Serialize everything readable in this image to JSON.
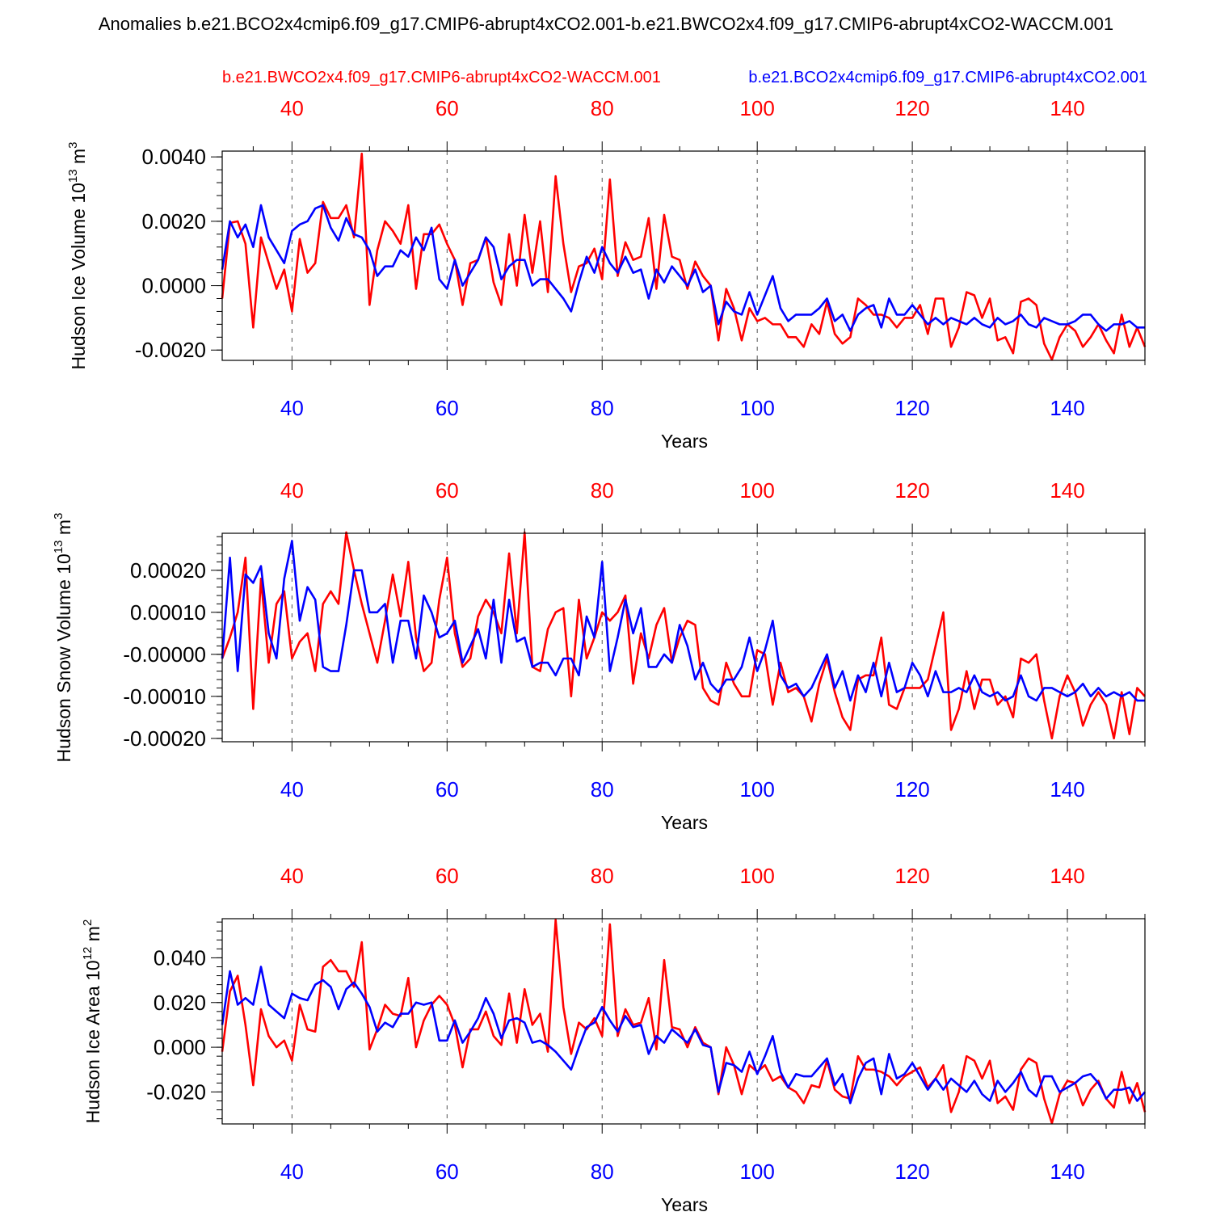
{
  "title": "Anomalies b.e21.BCO2x4cmip6.f09_g17.CMIP6-abrupt4xCO2.001-b.e21.BWCO2x4.f09_g17.CMIP6-abrupt4xCO2-WACCM.001",
  "colors": {
    "red": "#ff0000",
    "blue": "#0000ff",
    "grid": "#555555"
  },
  "legend": {
    "red_label": "b.e21.BWCO2x4.f09_g17.CMIP6-abrupt4xCO2-WACCM.001",
    "blue_label": "b.e21.BCO2x4cmip6.f09_g17.CMIP6-abrupt4xCO2.001"
  },
  "chart_data": [
    {
      "type": "line",
      "ylabel": "Hudson Ice Volume 10^13 m^3",
      "ylabel_main": "Hudson Ice Volume 10",
      "ylabel_exp": "13",
      "ylabel_unit": "m",
      "ylabel_unit_exp": "3",
      "xlabel": "Years",
      "xlim": [
        31,
        150
      ],
      "ylim": [
        -0.00232,
        0.00418
      ],
      "x_ticks": [
        "40",
        "60",
        "80",
        "100",
        "120",
        "140"
      ],
      "y_ticks": [
        "0.0040",
        "0.0020",
        "0.0000",
        "-0.0020"
      ],
      "y_tick_values": [
        0.004,
        0.002,
        0.0,
        -0.002
      ],
      "y_minor_step": 0.0004,
      "series": [
        {
          "name": "b.e21.BWCO2x4.f09_g17.CMIP6-abrupt4xCO2-WACCM.001",
          "color": "red",
          "values": [
            -0.0004,
            0.00195,
            0.002,
            0.0013,
            -0.0013,
            0.0015,
            0.0007,
            -0.0001,
            0.0005,
            -0.0008,
            0.00145,
            0.0004,
            0.0007,
            0.0026,
            0.0021,
            0.0021,
            0.0025,
            0.0015,
            0.0041,
            -0.0006,
            0.0011,
            0.002,
            0.0017,
            0.0013,
            0.0025,
            -0.0001,
            0.0016,
            0.0016,
            0.0019,
            0.0013,
            0.0008,
            -0.0006,
            0.0007,
            0.0008,
            0.0015,
            0.0001,
            -0.0006,
            0.0016,
            0.0,
            0.0022,
            0.0004,
            0.002,
            -0.0002,
            0.0034,
            0.0013,
            -0.0002,
            0.0006,
            0.0007,
            0.00115,
            0.0002,
            0.0033,
            0.0003,
            0.00135,
            0.0008,
            0.0009,
            0.0021,
            -0.0001,
            0.0022,
            0.0009,
            0.0008,
            -0.0001,
            0.00075,
            0.0003,
            0.0,
            -0.0017,
            -0.0001,
            -0.0007,
            -0.0017,
            -0.0007,
            -0.0011,
            -0.001,
            -0.0012,
            -0.0012,
            -0.0016,
            -0.0016,
            -0.0019,
            -0.0012,
            -0.0015,
            -0.0005,
            -0.0015,
            -0.0018,
            -0.0016,
            -0.0004,
            -0.0006,
            -0.0009,
            -0.0009,
            -0.001,
            -0.0013,
            -0.001,
            -0.001,
            -0.0006,
            -0.0015,
            -0.0004,
            -0.0004,
            -0.0019,
            -0.0013,
            -0.0002,
            -0.0003,
            -0.001,
            -0.0004,
            -0.0017,
            -0.0016,
            -0.0021,
            -0.0005,
            -0.0004,
            -0.0006,
            -0.0018,
            -0.0023,
            -0.0016,
            -0.0012,
            -0.0014,
            -0.0019,
            -0.0016,
            -0.0012,
            -0.0017,
            -0.0021,
            -0.0009,
            -0.0019,
            -0.0013,
            -0.0019
          ]
        },
        {
          "name": "b.e21.BCO2x4cmip6.f09_g17.CMIP6-abrupt4xCO2.001",
          "color": "blue",
          "values": [
            0.0005,
            0.002,
            0.0015,
            0.0019,
            0.0012,
            0.0025,
            0.0015,
            0.0011,
            0.0007,
            0.0017,
            0.0019,
            0.002,
            0.0024,
            0.0025,
            0.0018,
            0.0014,
            0.0021,
            0.0016,
            0.0015,
            0.0011,
            0.0003,
            0.0006,
            0.0006,
            0.0011,
            0.0009,
            0.0015,
            0.0011,
            0.0018,
            0.0002,
            -0.0001,
            0.0008,
            0.0,
            0.0004,
            0.0008,
            0.0015,
            0.0012,
            0.0002,
            0.0006,
            0.0008,
            0.0008,
            0.0,
            0.0002,
            0.0002,
            -0.0001,
            -0.0004,
            -0.0008,
            0.0001,
            0.0009,
            0.0004,
            0.0012,
            0.0007,
            0.0004,
            0.0009,
            0.0004,
            0.0005,
            -0.0004,
            0.0005,
            0.0001,
            0.0006,
            0.0003,
            0.0,
            0.0005,
            -0.0002,
            0.0,
            -0.0012,
            -0.0005,
            -0.0008,
            -0.0009,
            -0.0002,
            -0.0009,
            -0.0003,
            0.0003,
            -0.0007,
            -0.0011,
            -0.0009,
            -0.0009,
            -0.0009,
            -0.0007,
            -0.0004,
            -0.0011,
            -0.0009,
            -0.0014,
            -0.0009,
            -0.0007,
            -0.0006,
            -0.0013,
            -0.0004,
            -0.0009,
            -0.0009,
            -0.0006,
            -0.0009,
            -0.0012,
            -0.001,
            -0.0012,
            -0.001,
            -0.0011,
            -0.0012,
            -0.001,
            -0.0012,
            -0.0013,
            -0.001,
            -0.0012,
            -0.0011,
            -0.0009,
            -0.0012,
            -0.0013,
            -0.001,
            -0.0011,
            -0.0012,
            -0.0012,
            -0.0011,
            -0.0009,
            -0.0009,
            -0.0012,
            -0.0014,
            -0.0012,
            -0.0012,
            -0.0011,
            -0.0013,
            -0.0013
          ]
        }
      ]
    },
    {
      "type": "line",
      "ylabel": "Hudson Snow Volume 10^13 m^3",
      "ylabel_main": "Hudson Snow Volume 10",
      "ylabel_exp": "13",
      "ylabel_unit": "m",
      "ylabel_unit_exp": "3",
      "xlabel": "Years",
      "xlim": [
        31,
        150
      ],
      "ylim": [
        -0.000208,
        0.000288
      ],
      "x_ticks": [
        "40",
        "60",
        "80",
        "100",
        "120",
        "140"
      ],
      "y_ticks": [
        "0.00020",
        "0.00010",
        "-0.00000",
        "-0.00010",
        "-0.00020"
      ],
      "y_tick_values": [
        0.0002,
        0.0001,
        0.0,
        -0.0001,
        -0.0002
      ],
      "y_minor_step": 2e-05,
      "series": [
        {
          "name": "b.e21.BWCO2x4.f09_g17.CMIP6-abrupt4xCO2-WACCM.001",
          "color": "red",
          "values": [
            -1e-05,
            4e-05,
            0.0001,
            0.00023,
            -0.00013,
            0.00018,
            -2e-05,
            0.00012,
            0.00015,
            -1e-05,
            3e-05,
            5e-05,
            -4e-05,
            0.00012,
            0.00015,
            0.00012,
            0.00029,
            0.0002,
            0.00012,
            5e-05,
            -2e-05,
            8e-05,
            0.00019,
            9e-05,
            0.00022,
            4e-05,
            -4e-05,
            -2e-05,
            0.00013,
            0.00023,
            5e-05,
            -3e-05,
            -1e-05,
            9e-05,
            0.00013,
            0.0001,
            5e-05,
            0.00024,
            5e-05,
            0.00029,
            -3e-05,
            -4e-05,
            6e-05,
            0.0001,
            0.00011,
            -0.0001,
            0.00013,
            -1e-05,
            4e-05,
            0.0001,
            8e-05,
            0.0001,
            0.00014,
            -7e-05,
            5e-05,
            -1e-05,
            7e-05,
            0.00011,
            -2e-05,
            4e-05,
            8e-05,
            7e-05,
            -8e-05,
            -0.00011,
            -0.00012,
            -2e-05,
            -7e-05,
            -0.0001,
            -0.0001,
            1e-05,
            0.0,
            -0.00012,
            -2e-05,
            -9e-05,
            -8e-05,
            -0.0001,
            -0.00016,
            -7e-05,
            -1e-05,
            -9e-05,
            -0.00015,
            -0.00018,
            -6e-05,
            -5e-05,
            -5e-05,
            4e-05,
            -0.00012,
            -0.00013,
            -8e-05,
            -8e-05,
            -8e-05,
            -6e-05,
            2e-05,
            0.0001,
            -0.00018,
            -0.00013,
            -4e-05,
            -0.00013,
            -6e-05,
            -6e-05,
            -0.00012,
            -0.0001,
            -0.00015,
            -1e-05,
            -2e-05,
            0.0,
            -0.00011,
            -0.0002,
            -0.0001,
            -5e-05,
            -9e-05,
            -0.00017,
            -0.00012,
            -9e-05,
            -0.00012,
            -0.0002,
            -9e-05,
            -0.00019,
            -8e-05,
            -0.0001
          ]
        },
        {
          "name": "b.e21.BCO2x4cmip6.f09_g17.CMIP6-abrupt4xCO2.001",
          "color": "blue",
          "values": [
            -1e-05,
            0.00023,
            -4e-05,
            0.00019,
            0.00017,
            0.00021,
            5e-05,
            -1e-05,
            0.00018,
            0.00027,
            8e-05,
            0.00016,
            0.00013,
            -3e-05,
            -4e-05,
            -4e-05,
            7e-05,
            0.0002,
            0.0002,
            0.0001,
            0.0001,
            0.00012,
            -2e-05,
            8e-05,
            8e-05,
            -1e-05,
            0.00014,
            0.0001,
            4e-05,
            5e-05,
            8e-05,
            -2e-05,
            2e-05,
            6e-05,
            -1e-05,
            0.00013,
            -2e-05,
            0.00013,
            3e-05,
            4e-05,
            -3e-05,
            -2e-05,
            -2e-05,
            -5e-05,
            -1e-05,
            -1e-05,
            -5e-05,
            9e-05,
            4e-05,
            0.00022,
            -4e-05,
            4e-05,
            0.00013,
            5e-05,
            0.00011,
            -3e-05,
            -3e-05,
            0.0,
            -2e-05,
            7e-05,
            2e-05,
            -6e-05,
            -2e-05,
            -7e-05,
            -9e-05,
            -6e-05,
            -6e-05,
            -3e-05,
            4e-05,
            -4e-05,
            1e-05,
            8e-05,
            -5e-05,
            -8e-05,
            -7e-05,
            -0.0001,
            -8e-05,
            -4e-05,
            0.0,
            -8e-05,
            -4e-05,
            -0.00011,
            -5e-05,
            -9e-05,
            -2e-05,
            -0.0001,
            -2e-05,
            -9e-05,
            -8e-05,
            -2e-05,
            -5e-05,
            -0.0001,
            -4e-05,
            -9e-05,
            -9e-05,
            -8e-05,
            -9e-05,
            -5e-05,
            -9e-05,
            -0.0001,
            -9e-05,
            -0.00011,
            -0.0001,
            -5e-05,
            -0.0001,
            -0.00011,
            -8e-05,
            -8e-05,
            -9e-05,
            -0.0001,
            -9e-05,
            -7e-05,
            -0.0001,
            -8e-05,
            -0.0001,
            -9e-05,
            -0.0001,
            -9e-05,
            -0.00011,
            -0.00011
          ]
        }
      ]
    },
    {
      "type": "line",
      "ylabel": "Hudson Ice Area 10^12 m^2",
      "ylabel_main": "Hudson Ice Area 10",
      "ylabel_exp": "12",
      "ylabel_unit": "m",
      "ylabel_unit_exp": "2",
      "xlabel": "Years",
      "xlim": [
        31,
        150
      ],
      "ylim": [
        -0.0343,
        0.0575
      ],
      "x_ticks": [
        "40",
        "60",
        "80",
        "100",
        "120",
        "140"
      ],
      "y_ticks": [
        "0.040",
        "0.020",
        "0.000",
        "-0.020"
      ],
      "y_tick_values": [
        0.04,
        0.02,
        0.0,
        -0.02
      ],
      "y_minor_step": 0.004,
      "series": [
        {
          "name": "b.e21.BWCO2x4.f09_g17.CMIP6-abrupt4xCO2-WACCM.001",
          "color": "red",
          "values": [
            -0.002,
            0.025,
            0.032,
            0.01,
            -0.017,
            0.017,
            0.005,
            0.0,
            0.003,
            -0.006,
            0.019,
            0.008,
            0.007,
            0.036,
            0.039,
            0.034,
            0.034,
            0.027,
            0.047,
            -0.001,
            0.008,
            0.019,
            0.015,
            0.014,
            0.031,
            0.0,
            0.012,
            0.019,
            0.023,
            0.019,
            0.01,
            -0.009,
            0.008,
            0.008,
            0.016,
            0.005,
            0.001,
            0.024,
            0.002,
            0.026,
            0.01,
            0.015,
            -0.002,
            0.057,
            0.018,
            -0.003,
            0.011,
            0.008,
            0.013,
            0.005,
            0.055,
            0.005,
            0.017,
            0.01,
            0.011,
            0.022,
            -0.001,
            0.039,
            0.009,
            0.008,
            0.0,
            0.009,
            0.002,
            0.0,
            -0.021,
            0.0,
            -0.008,
            -0.021,
            -0.008,
            -0.011,
            -0.008,
            -0.015,
            -0.013,
            -0.018,
            -0.02,
            -0.025,
            -0.017,
            -0.018,
            -0.006,
            -0.019,
            -0.022,
            -0.023,
            -0.004,
            -0.01,
            -0.01,
            -0.011,
            -0.013,
            -0.017,
            -0.013,
            -0.011,
            -0.009,
            -0.018,
            -0.014,
            -0.008,
            -0.029,
            -0.02,
            -0.004,
            -0.006,
            -0.014,
            -0.006,
            -0.025,
            -0.022,
            -0.028,
            -0.01,
            -0.005,
            -0.007,
            -0.023,
            -0.034,
            -0.021,
            -0.015,
            -0.016,
            -0.026,
            -0.019,
            -0.015,
            -0.023,
            -0.027,
            -0.011,
            -0.025,
            -0.016,
            -0.029
          ]
        },
        {
          "name": "b.e21.BCO2x4cmip6.f09_g17.CMIP6-abrupt4xCO2.001",
          "color": "blue",
          "values": [
            0.01,
            0.034,
            0.019,
            0.022,
            0.019,
            0.036,
            0.019,
            0.016,
            0.013,
            0.024,
            0.022,
            0.021,
            0.028,
            0.03,
            0.027,
            0.017,
            0.026,
            0.029,
            0.024,
            0.018,
            0.007,
            0.011,
            0.009,
            0.015,
            0.015,
            0.02,
            0.019,
            0.02,
            0.003,
            0.003,
            0.012,
            0.002,
            0.007,
            0.013,
            0.022,
            0.015,
            0.004,
            0.012,
            0.013,
            0.011,
            0.002,
            0.003,
            0.001,
            -0.002,
            -0.006,
            -0.01,
            0.0,
            0.009,
            0.011,
            0.018,
            0.012,
            0.007,
            0.014,
            0.009,
            0.01,
            -0.003,
            0.005,
            0.002,
            0.008,
            0.005,
            0.002,
            0.008,
            0.001,
            0.0,
            -0.02,
            -0.007,
            -0.008,
            -0.011,
            -0.002,
            -0.012,
            -0.004,
            0.005,
            -0.011,
            -0.018,
            -0.012,
            -0.013,
            -0.013,
            -0.009,
            -0.005,
            -0.017,
            -0.012,
            -0.025,
            -0.014,
            -0.007,
            -0.005,
            -0.021,
            -0.003,
            -0.014,
            -0.012,
            -0.007,
            -0.013,
            -0.019,
            -0.014,
            -0.019,
            -0.014,
            -0.017,
            -0.02,
            -0.015,
            -0.021,
            -0.024,
            -0.015,
            -0.02,
            -0.016,
            -0.011,
            -0.019,
            -0.022,
            -0.013,
            -0.013,
            -0.02,
            -0.018,
            -0.016,
            -0.013,
            -0.012,
            -0.016,
            -0.023,
            -0.019,
            -0.019,
            -0.018,
            -0.024,
            -0.02
          ]
        }
      ]
    }
  ]
}
